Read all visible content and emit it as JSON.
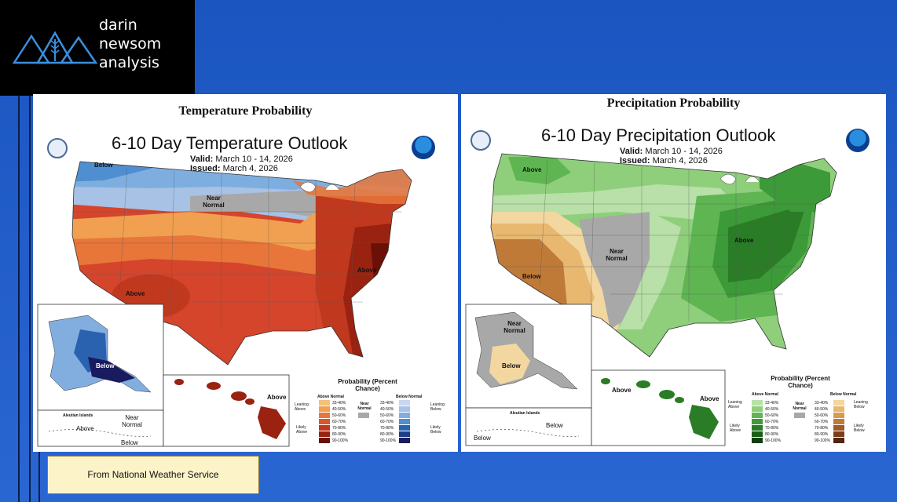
{
  "logo": {
    "line1": "darin",
    "line2": "newsom",
    "line3": "analysis"
  },
  "source": {
    "text": "From National Weather Service"
  },
  "colors": {
    "background": "#1f5cc4",
    "source_box": "#fdf3c8"
  },
  "temperature": {
    "panel_title": "Temperature Probability",
    "map_title": "6-10 Day Temperature Outlook",
    "valid_label": "Valid:",
    "valid_value": "March 10 - 14, 2026",
    "issued_label": "Issued:",
    "issued_value": "March 4, 2026",
    "regions": {
      "below": "Below",
      "near_normal": "Near Normal",
      "above_sw": "Above",
      "above_east": "Above",
      "alaska_below": "Below",
      "hawaii_above": "Above",
      "aleutian_title": "Aleutian Islands",
      "aleutian_above": "Above",
      "aleutian_near": "Near Normal",
      "aleutian_below": "Below"
    },
    "legend": {
      "title": "Probability (Percent Chance)",
      "above_title": "Above Normal",
      "below_title": "Below Normal",
      "near_title": "Near Normal",
      "leaning_above": "Leaning Above",
      "likely_above": "Likely Above",
      "leaning_below": "Leaning Below",
      "likely_below": "Likely Below",
      "ranges": [
        "33-40%",
        "40-50%",
        "50-60%",
        "60-70%",
        "70-80%",
        "80-90%",
        "90-100%"
      ],
      "above_colors": [
        "#f5c07a",
        "#f0a050",
        "#e8763a",
        "#d9552a",
        "#c0391e",
        "#9a2210",
        "#6a1006"
      ],
      "below_colors": [
        "#c9d6ef",
        "#a9c2e8",
        "#82aedf",
        "#4f8ed0",
        "#2a62b0",
        "#1c3f8a",
        "#1a1a5e"
      ]
    }
  },
  "precipitation": {
    "panel_title": "Precipitation Probability",
    "map_title": "6-10 Day Precipitation Outlook",
    "valid_label": "Valid:",
    "valid_value": "March 10 - 14, 2026",
    "issued_label": "Issued:",
    "issued_value": "March 4, 2026",
    "regions": {
      "above_nw": "Above",
      "near_normal": "Near Normal",
      "below_sw": "Below",
      "above_east": "Above",
      "alaska_near": "Near Normal",
      "alaska_below": "Below",
      "hawaii_above_w": "Above",
      "hawaii_above_e": "Above",
      "aleutian_title": "Aleutian Islands",
      "aleutian_below_e": "Below",
      "aleutian_below_w": "Below"
    },
    "legend": {
      "title": "Probability (Percent Chance)",
      "above_title": "Above Normal",
      "below_title": "Below Normal",
      "near_title": "Near Normal",
      "leaning_above": "Leaning Above",
      "likely_above": "Likely Above",
      "leaning_below": "Leaning Below",
      "likely_below": "Likely Below",
      "ranges": [
        "33-40%",
        "40-50%",
        "50-60%",
        "60-70%",
        "70-80%",
        "80-90%",
        "90-100%"
      ],
      "above_colors": [
        "#b8e0a8",
        "#8fcf7c",
        "#5fb552",
        "#3c9a38",
        "#2a7d26",
        "#1a5e18",
        "#0f3d0e"
      ],
      "below_colors": [
        "#f3d7a0",
        "#e8b870",
        "#d99a4c",
        "#c07a38",
        "#9e5a28",
        "#7a3e1a",
        "#52250e"
      ]
    }
  }
}
